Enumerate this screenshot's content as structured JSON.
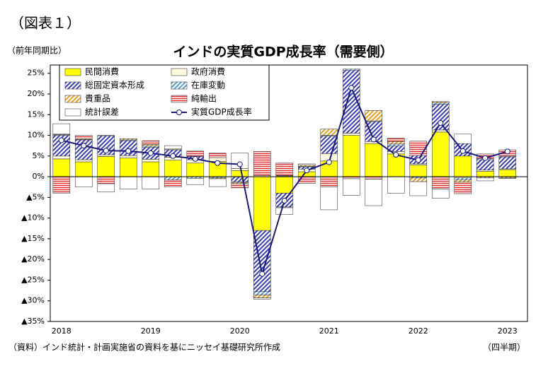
{
  "page_label": "（図表１）",
  "chart_data": {
    "type": "bar",
    "title": "インドの実質GDP成長率（需要側）",
    "y_axis_label": "（前年同期比）",
    "x_axis_label": "（四半期）",
    "source": "（資料）インド統計・計画実施省の資料を基にニッセイ基礎研究所作成",
    "stacked": true,
    "legend": "upper left",
    "categories": [
      "2018",
      null,
      null,
      null,
      "2019",
      null,
      null,
      null,
      "2020",
      null,
      null,
      null,
      "2021",
      null,
      null,
      null,
      "2022",
      null,
      null,
      null,
      "2023"
    ],
    "ylim": [
      -35,
      27
    ],
    "yticks": [
      {
        "value": 25,
        "label": "25%"
      },
      {
        "value": 20,
        "label": "20%"
      },
      {
        "value": 15,
        "label": "15%"
      },
      {
        "value": 10,
        "label": "10%"
      },
      {
        "value": 5,
        "label": "5%"
      },
      {
        "value": 0,
        "label": "0%"
      },
      {
        "value": -5,
        "label": "▲5%"
      },
      {
        "value": -10,
        "label": "▲10%"
      },
      {
        "value": -15,
        "label": "▲15%"
      },
      {
        "value": -20,
        "label": "▲20%"
      },
      {
        "value": -25,
        "label": "▲25%"
      },
      {
        "value": -30,
        "label": "▲30%"
      },
      {
        "value": -35,
        "label": "▲35%"
      }
    ],
    "series": [
      {
        "name": "民間消費",
        "color": "#ffff00",
        "fill_style": "solid",
        "values": [
          4.3,
          3.6,
          4.9,
          4.5,
          3.6,
          4.0,
          3.3,
          3.7,
          1.5,
          -13.0,
          -4.0,
          1.2,
          3.8,
          10.0,
          8.0,
          5.5,
          2.8,
          10.8,
          5.0,
          1.3,
          1.7
        ]
      },
      {
        "name": "政府消費",
        "color": "#fffbe0",
        "fill_style": "solid",
        "values": [
          0.7,
          0.5,
          0.4,
          0.6,
          0.6,
          0.7,
          0.8,
          0.9,
          0.5,
          0.3,
          0.2,
          0.6,
          1.8,
          0.5,
          0.5,
          0.6,
          0.3,
          0.5,
          -0.3,
          0.3,
          0.2
        ]
      },
      {
        "name": "総固定資本形成",
        "color": "#3a3ab8",
        "fill_style": "diagonal",
        "values": [
          5.0,
          4.8,
          4.6,
          3.6,
          2.9,
          1.8,
          0.8,
          0.0,
          -1.2,
          -14.8,
          -3.3,
          0.6,
          4.2,
          15.2,
          4.8,
          1.3,
          2.0,
          6.2,
          3.0,
          2.5,
          2.9
        ]
      },
      {
        "name": "在庫変動",
        "color": "#5b9bd5",
        "fill_style": "diagonal",
        "values": [
          0.2,
          0.1,
          0.1,
          0.2,
          0.3,
          -0.8,
          -0.4,
          -0.3,
          -0.2,
          -0.8,
          -0.2,
          0.1,
          0.2,
          0.3,
          0.2,
          0.5,
          -0.3,
          0.4,
          -0.5,
          0.3,
          0.2
        ]
      },
      {
        "name": "貴重品",
        "color": "#e6a020",
        "fill_style": "diagonal",
        "values": [
          0.1,
          0.2,
          0.0,
          0.3,
          0.4,
          0.2,
          0.1,
          -0.2,
          -0.3,
          -0.7,
          0.1,
          0.3,
          1.5,
          0.0,
          2.5,
          0.6,
          -0.9,
          0.3,
          -0.5,
          -0.3,
          -0.3
        ]
      },
      {
        "name": "純輸出",
        "color": "#e03030",
        "fill_style": "horizontal",
        "values": [
          -4.0,
          0.8,
          -1.7,
          0.0,
          0.9,
          -1.7,
          1.2,
          1.1,
          -1.0,
          5.8,
          3.0,
          -1.6,
          -2.5,
          -0.5,
          -0.6,
          0.8,
          3.5,
          -3.0,
          -2.8,
          1.1,
          1.5
        ]
      },
      {
        "name": "統計誤差",
        "color": "#ffffff",
        "fill_style": "solid",
        "values": [
          2.5,
          -2.5,
          -2.0,
          -3.0,
          -3.0,
          0.8,
          -1.5,
          -1.9,
          3.7,
          -0.3,
          -1.6,
          0.3,
          -5.5,
          -4.0,
          -6.4,
          -4.0,
          -3.4,
          -2.2,
          2.3,
          -0.7,
          -0.1
        ]
      },
      {
        "name": "実質GDP成長率",
        "color": "#1a1a7a",
        "type": "line",
        "values": [
          8.8,
          7.5,
          6.3,
          6.2,
          5.7,
          5.0,
          4.3,
          3.3,
          3.0,
          -23.5,
          -5.8,
          1.5,
          3.5,
          21.5,
          9.0,
          5.3,
          4.0,
          13.0,
          6.2,
          4.5,
          6.1
        ]
      }
    ]
  }
}
